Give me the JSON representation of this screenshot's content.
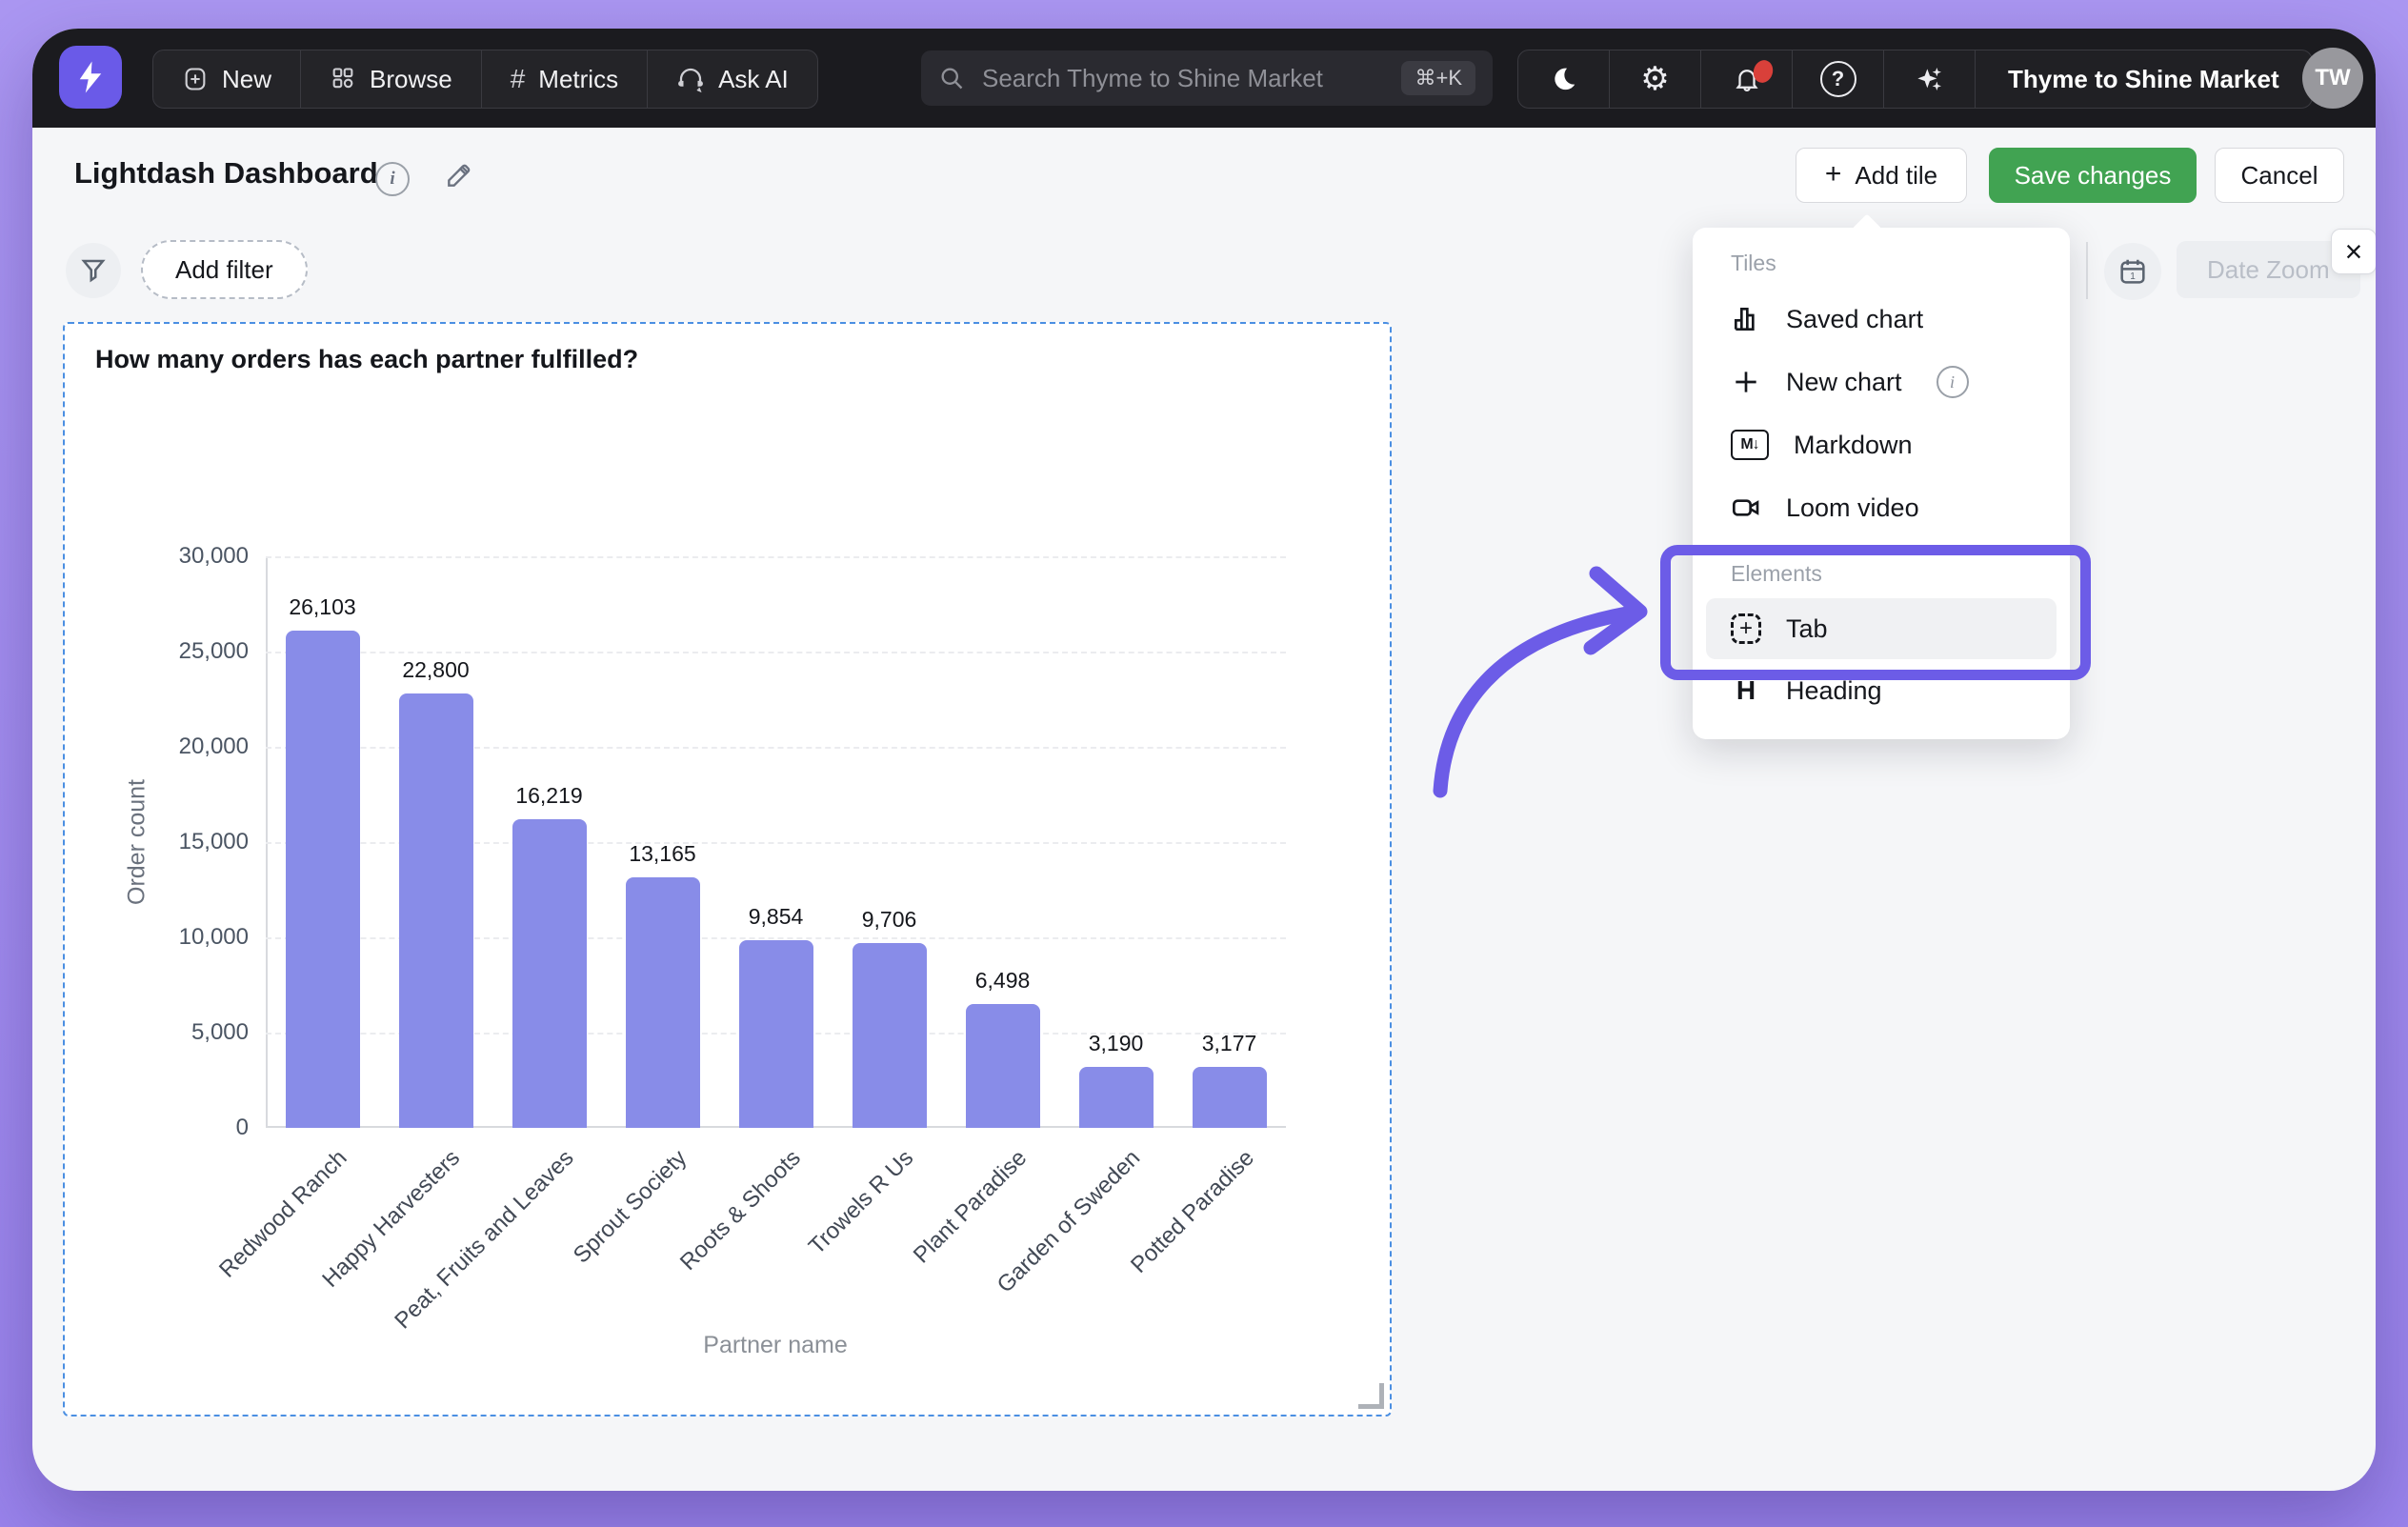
{
  "topbar": {
    "nav": [
      {
        "icon": "plus-square-icon",
        "label": "New"
      },
      {
        "icon": "grid-icon",
        "label": "Browse"
      },
      {
        "icon": "hash-icon",
        "label": "Metrics"
      },
      {
        "icon": "headset-icon",
        "label": "Ask AI"
      }
    ],
    "search": {
      "placeholder": "Search Thyme to Shine Market",
      "shortcut": "⌘+K"
    },
    "org": "Thyme to Shine Market",
    "avatar": "TW"
  },
  "header": {
    "title": "Lightdash Dashboard",
    "add_tile": "Add tile",
    "save": "Save changes",
    "cancel": "Cancel"
  },
  "toolbar": {
    "add_filter": "Add filter",
    "date_zoom": "Date Zoom"
  },
  "tile": {
    "title": "How many orders has each partner fulfilled?"
  },
  "chart_data": {
    "type": "bar",
    "title": "How many orders has each partner fulfilled?",
    "categories": [
      "Redwood Ranch",
      "Happy Harvesters",
      "Peat, Fruits and Leaves",
      "Sprout Society",
      "Roots & Shoots",
      "Trowels R Us",
      "Plant Paradise",
      "Garden of Sweden",
      "Potted Paradise"
    ],
    "values": [
      26103,
      22800,
      16219,
      13165,
      9854,
      9706,
      6498,
      3190,
      3177
    ],
    "xlabel": "Partner name",
    "ylabel": "Order count",
    "ylim": [
      0,
      30000
    ],
    "ytick_step": 5000,
    "grid": true,
    "bar_color": "#888ce8"
  },
  "menu": {
    "tiles_label": "Tiles",
    "items": [
      {
        "icon": "bar-chart-icon",
        "label": "Saved chart"
      },
      {
        "icon": "plus-icon",
        "label": "New chart",
        "info": true
      },
      {
        "icon": "markdown-icon",
        "label": "Markdown"
      },
      {
        "icon": "video-camera-icon",
        "label": "Loom video"
      }
    ],
    "elements_label": "Elements",
    "elements": [
      {
        "icon": "tab-icon",
        "label": "Tab",
        "highlighted": true
      },
      {
        "icon": "heading-icon",
        "label": "Heading"
      }
    ]
  },
  "icons": {
    "plus": "+",
    "hash": "#",
    "help": "?",
    "info": "i",
    "close": "×",
    "markdown_glyph": "M↓",
    "heading_glyph": "H",
    "tab_plus": "+",
    "gear": "⚙"
  },
  "colors": {
    "accent_purple": "#6c5ce7",
    "bar_purple": "#888ce8",
    "save_green": "#41a352",
    "navbar_dark": "#1b1b1f",
    "tile_border_blue": "#4b8fe2",
    "background_lavender": "#a18cef",
    "notification_red": "#d9403a"
  }
}
